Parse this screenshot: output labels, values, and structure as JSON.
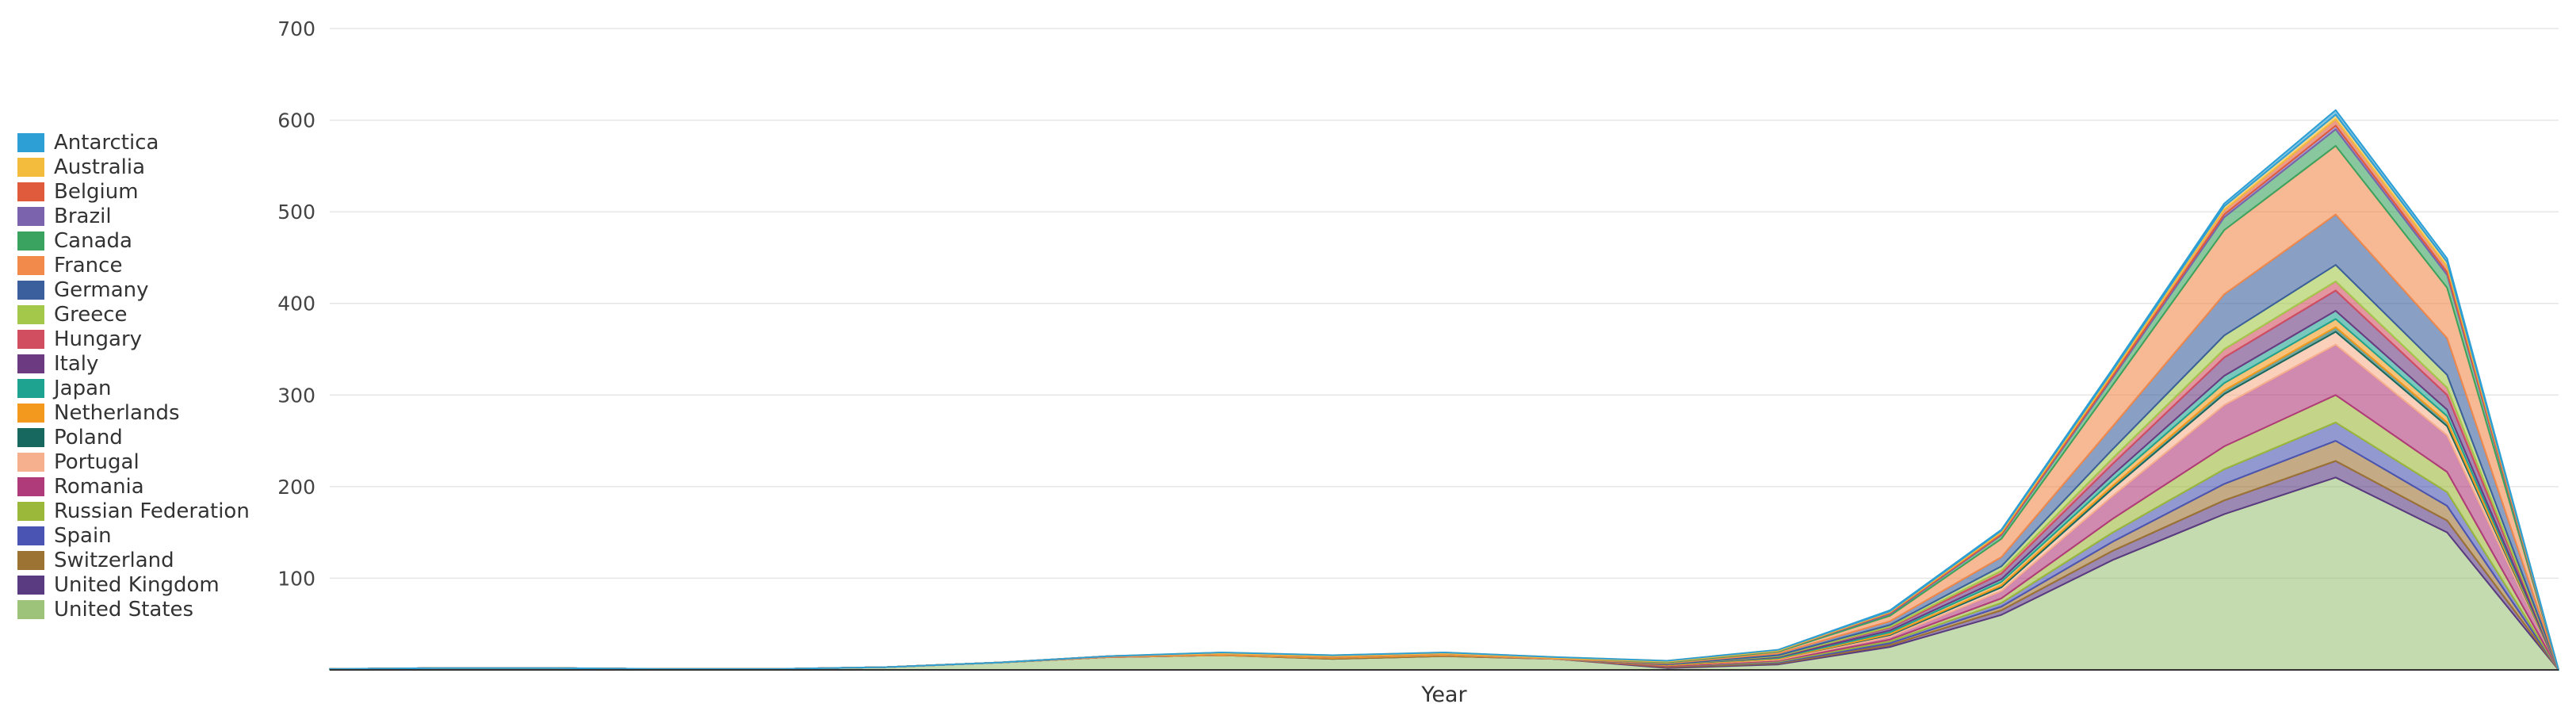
{
  "chart_data": {
    "type": "area",
    "stacked": true,
    "xlabel": "Year",
    "ylabel": "",
    "ylim": [
      0,
      700
    ],
    "yticks": [
      100,
      200,
      300,
      400,
      500,
      600,
      700
    ],
    "grid": true,
    "legend_position": "left",
    "x": [
      0,
      5,
      10,
      15,
      20,
      25,
      30,
      35,
      40,
      45,
      50,
      55,
      60,
      65,
      70,
      75,
      80,
      85,
      90,
      95,
      100
    ],
    "series": [
      {
        "name": "Antarctica",
        "color": "#2e9fd4",
        "values": [
          0,
          0,
          0,
          0,
          0,
          0,
          0,
          0,
          0,
          0,
          0,
          0,
          0,
          0,
          1,
          1,
          2,
          3,
          5,
          4,
          0
        ]
      },
      {
        "name": "Australia",
        "color": "#f3bc3c",
        "values": [
          0,
          0,
          0,
          0,
          0,
          0,
          0,
          0,
          1,
          1,
          1,
          1,
          1,
          1,
          1,
          2,
          3,
          4,
          5,
          5,
          0
        ]
      },
      {
        "name": "Belgium",
        "color": "#e05b3b",
        "values": [
          0,
          0,
          0,
          0,
          0,
          0,
          0,
          0,
          0,
          0,
          0,
          0,
          0,
          0,
          1,
          2,
          3,
          5,
          7,
          6,
          0
        ]
      },
      {
        "name": "Brazil",
        "color": "#7b64ad",
        "values": [
          0,
          0,
          0,
          0,
          0,
          0,
          0,
          0,
          0,
          0,
          0,
          0,
          0,
          0,
          1,
          1,
          2,
          3,
          4,
          3,
          0
        ]
      },
      {
        "name": "Canada",
        "color": "#3aa35f",
        "values": [
          0,
          0,
          0,
          0,
          0,
          0,
          0,
          0,
          0,
          0,
          0,
          0,
          1,
          1,
          2,
          4,
          8,
          14,
          18,
          14,
          0
        ]
      },
      {
        "name": "France",
        "color": "#f28a4c",
        "values": [
          0,
          0,
          0,
          0,
          0,
          0,
          0,
          1,
          1,
          1,
          1,
          1,
          1,
          2,
          6,
          20,
          45,
          70,
          75,
          55,
          0
        ]
      },
      {
        "name": "Germany",
        "color": "#3a5f9c",
        "values": [
          0,
          0,
          0,
          0,
          0,
          0,
          0,
          0,
          0,
          0,
          0,
          0,
          1,
          2,
          4,
          10,
          25,
          45,
          55,
          40,
          0
        ]
      },
      {
        "name": "Greece",
        "color": "#a3c84a",
        "values": [
          0,
          0,
          0,
          0,
          0,
          0,
          0,
          0,
          0,
          0,
          0,
          0,
          0,
          1,
          2,
          5,
          10,
          15,
          18,
          14,
          0
        ]
      },
      {
        "name": "Hungary",
        "color": "#d14e60",
        "values": [
          0,
          0,
          0,
          0,
          0,
          0,
          0,
          0,
          0,
          0,
          0,
          0,
          0,
          0,
          1,
          3,
          6,
          9,
          10,
          8,
          0
        ]
      },
      {
        "name": "Italy",
        "color": "#6b3a80",
        "values": [
          0,
          0,
          0,
          0,
          0,
          0,
          0,
          0,
          0,
          0,
          0,
          0,
          0,
          1,
          3,
          6,
          12,
          20,
          22,
          16,
          0
        ]
      },
      {
        "name": "Japan",
        "color": "#1fa391",
        "values": [
          0,
          0,
          0,
          0,
          0,
          0,
          0,
          0,
          0,
          0,
          0,
          0,
          0,
          1,
          2,
          3,
          6,
          8,
          9,
          7,
          0
        ]
      },
      {
        "name": "Netherlands",
        "color": "#f39a1e",
        "values": [
          0,
          0,
          0,
          0,
          0,
          0,
          0,
          0,
          1,
          1,
          1,
          0,
          1,
          1,
          2,
          4,
          6,
          8,
          9,
          7,
          0
        ]
      },
      {
        "name": "Poland",
        "color": "#17695f",
        "values": [
          0,
          0,
          0,
          0,
          0,
          0,
          0,
          0,
          0,
          0,
          0,
          0,
          0,
          0,
          1,
          2,
          3,
          4,
          5,
          4,
          0
        ]
      },
      {
        "name": "Portugal",
        "color": "#f6b08e",
        "values": [
          0,
          0,
          0,
          0,
          0,
          0,
          0,
          0,
          0,
          0,
          0,
          0,
          0,
          1,
          2,
          4,
          8,
          12,
          14,
          10,
          0
        ]
      },
      {
        "name": "Romania",
        "color": "#b03b7a",
        "values": [
          0,
          0,
          0,
          0,
          0,
          0,
          0,
          0,
          0,
          0,
          0,
          0,
          1,
          1,
          3,
          8,
          25,
          45,
          55,
          40,
          0
        ]
      },
      {
        "name": "Russian Federation",
        "color": "#9cb83a",
        "values": [
          0,
          0,
          0,
          0,
          0,
          0,
          0,
          0,
          0,
          0,
          0,
          0,
          0,
          1,
          2,
          5,
          15,
          25,
          30,
          22,
          0
        ]
      },
      {
        "name": "Spain",
        "color": "#4a55b3",
        "values": [
          0,
          0,
          0,
          0,
          0,
          0,
          0,
          0,
          0,
          0,
          0,
          0,
          0,
          1,
          2,
          4,
          10,
          16,
          20,
          15,
          0
        ]
      },
      {
        "name": "Switzerland",
        "color": "#9c7333",
        "values": [
          0,
          0,
          0,
          0,
          0,
          0,
          0,
          0,
          0,
          1,
          1,
          0,
          1,
          1,
          2,
          4,
          10,
          18,
          22,
          16,
          0
        ]
      },
      {
        "name": "United Kingdom",
        "color": "#5a3a80",
        "values": [
          0,
          0,
          0,
          0,
          0,
          0,
          0,
          0,
          0,
          0,
          0,
          0,
          1,
          1,
          2,
          5,
          10,
          15,
          18,
          13,
          0
        ]
      },
      {
        "name": "United States",
        "color": "#9dc27a",
        "values": [
          1,
          2,
          2,
          1,
          1,
          3,
          8,
          14,
          16,
          12,
          15,
          12,
          2,
          6,
          25,
          60,
          120,
          170,
          210,
          150,
          0
        ]
      }
    ]
  }
}
